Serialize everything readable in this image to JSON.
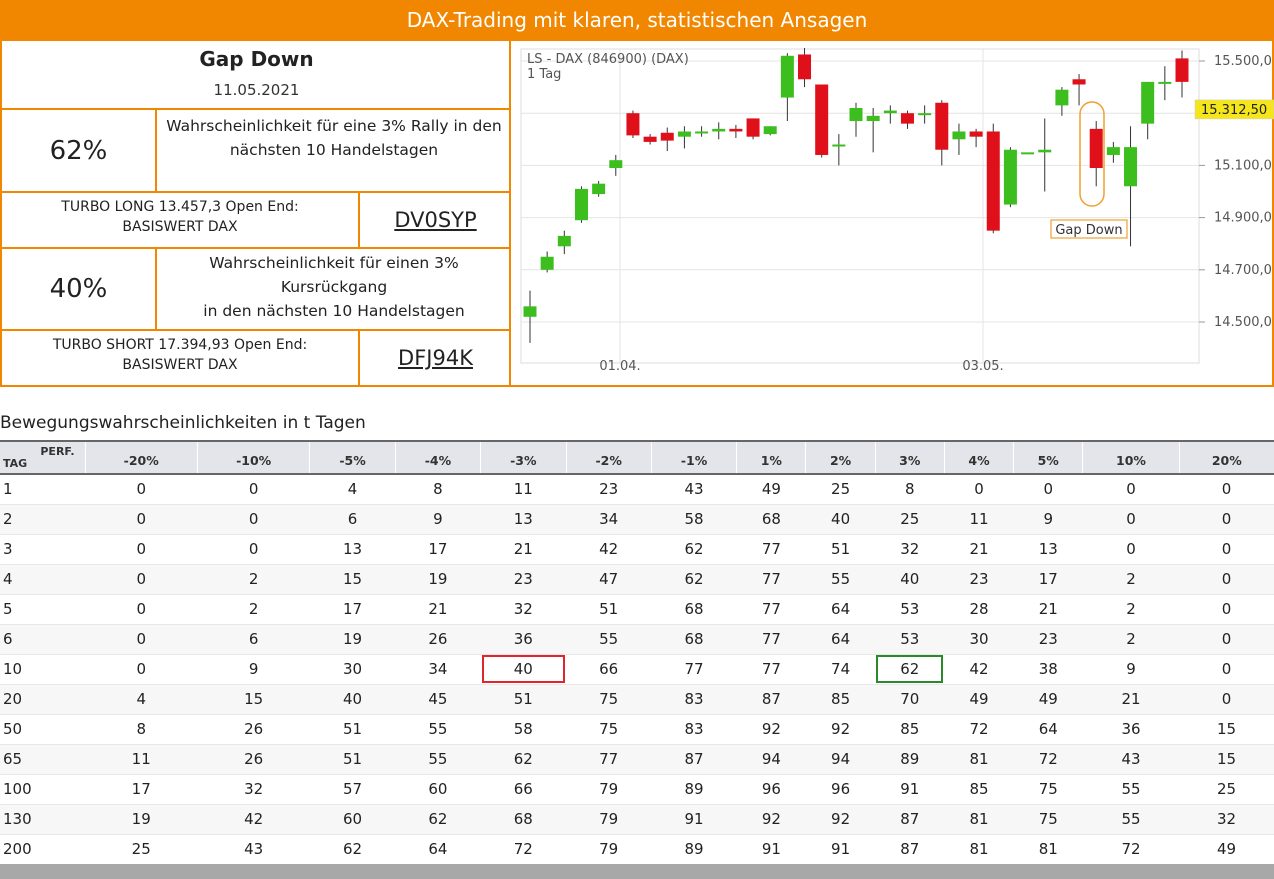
{
  "header": {
    "title": "DAX-Trading mit klaren, statistischen Ansagen"
  },
  "signal": {
    "title": "Gap Down",
    "date": "11.05.2021",
    "rally_pct": "62%",
    "rally_desc_1": "Wahrscheinlichkeit für eine 3% Rally in den",
    "rally_desc_2": "nächsten 10 Handelstagen",
    "long_line1": "TURBO LONG 13.457,3 Open End:",
    "long_line2": "BASISWERT DAX",
    "long_code": "DV0SYP",
    "drop_pct": "40%",
    "drop_desc_1": "Wahrscheinlichkeit für einen 3% Kursrückgang",
    "drop_desc_2": "in den nächsten 10 Handelstagen",
    "short_line1": "TURBO SHORT 17.394,93 Open End:",
    "short_line2": "BASISWERT DAX",
    "short_code": "DFJ94K"
  },
  "chart_data": {
    "type": "candlestick",
    "title": "LS - DAX (846900) (DAX)",
    "subtitle": "1 Tag",
    "y_ticks": [
      "15.500,0",
      "15.100,0",
      "14.900,0",
      "14.700,0",
      "14.500,0"
    ],
    "current_price_label": "15.312,50",
    "current_price": 15312.5,
    "x_ticks": [
      "01.04.",
      "03.05."
    ],
    "annotation": "Gap Down",
    "ylim": [
      14410,
      15560
    ],
    "grid": true,
    "up_color": "#3cbf1e",
    "down_color": "#e0101a",
    "candles": [
      {
        "o": 14520,
        "h": 14620,
        "l": 14420,
        "c": 14560
      },
      {
        "o": 14700,
        "h": 14770,
        "l": 14690,
        "c": 14750
      },
      {
        "o": 14790,
        "h": 14850,
        "l": 14760,
        "c": 14830
      },
      {
        "o": 14890,
        "h": 15020,
        "l": 14880,
        "c": 15010
      },
      {
        "o": 14990,
        "h": 15040,
        "l": 14980,
        "c": 15030
      },
      {
        "o": 15090,
        "h": 15140,
        "l": 15060,
        "c": 15120
      },
      {
        "o": 15300,
        "h": 15310,
        "l": 15205,
        "c": 15215
      },
      {
        "o": 15210,
        "h": 15220,
        "l": 15180,
        "c": 15190
      },
      {
        "o": 15225,
        "h": 15245,
        "l": 15155,
        "c": 15195
      },
      {
        "o": 15210,
        "h": 15250,
        "l": 15165,
        "c": 15230
      },
      {
        "o": 15230,
        "h": 15250,
        "l": 15210,
        "c": 15230
      },
      {
        "o": 15230,
        "h": 15265,
        "l": 15200,
        "c": 15240
      },
      {
        "o": 15240,
        "h": 15255,
        "l": 15205,
        "c": 15230
      },
      {
        "o": 15280,
        "h": 15280,
        "l": 15200,
        "c": 15210
      },
      {
        "o": 15220,
        "h": 15250,
        "l": 15215,
        "c": 15250
      },
      {
        "o": 15360,
        "h": 15530,
        "l": 15270,
        "c": 15520
      },
      {
        "o": 15525,
        "h": 15550,
        "l": 15400,
        "c": 15430
      },
      {
        "o": 15410,
        "h": 15410,
        "l": 15130,
        "c": 15140
      },
      {
        "o": 15180,
        "h": 15220,
        "l": 15100,
        "c": 15180
      },
      {
        "o": 15270,
        "h": 15340,
        "l": 15210,
        "c": 15320
      },
      {
        "o": 15270,
        "h": 15320,
        "l": 15150,
        "c": 15290
      },
      {
        "o": 15300,
        "h": 15330,
        "l": 15260,
        "c": 15310
      },
      {
        "o": 15300,
        "h": 15310,
        "l": 15240,
        "c": 15260
      },
      {
        "o": 15300,
        "h": 15330,
        "l": 15260,
        "c": 15300
      },
      {
        "o": 15340,
        "h": 15350,
        "l": 15100,
        "c": 15160
      },
      {
        "o": 15200,
        "h": 15260,
        "l": 15140,
        "c": 15230
      },
      {
        "o": 15230,
        "h": 15240,
        "l": 15170,
        "c": 15210
      },
      {
        "o": 15230,
        "h": 15260,
        "l": 14840,
        "c": 14850
      },
      {
        "o": 14950,
        "h": 15170,
        "l": 14940,
        "c": 15160
      },
      {
        "o": 15150,
        "h": 15150,
        "l": 15150,
        "c": 15150
      },
      {
        "o": 15150,
        "h": 15280,
        "l": 15000,
        "c": 15160
      },
      {
        "o": 15330,
        "h": 15400,
        "l": 15290,
        "c": 15390
      },
      {
        "o": 15430,
        "h": 15450,
        "l": 15330,
        "c": 15410
      },
      {
        "o": 15240,
        "h": 15270,
        "l": 15020,
        "c": 15090
      },
      {
        "o": 15140,
        "h": 15190,
        "l": 15110,
        "c": 15170
      },
      {
        "o": 15020,
        "h": 15250,
        "l": 14790,
        "c": 15170
      },
      {
        "o": 15260,
        "h": 15420,
        "l": 15200,
        "c": 15420
      },
      {
        "o": 15420,
        "h": 15480,
        "l": 15350,
        "c": 15420
      },
      {
        "o": 15510,
        "h": 15540,
        "l": 15360,
        "c": 15420
      }
    ]
  },
  "table": {
    "heading": "Bewegungswahrscheinlichkeiten in t Tagen",
    "perf_label": "PERF.",
    "tag_label": "TAG",
    "columns": [
      "-20%",
      "-10%",
      "-5%",
      "-4%",
      "-3%",
      "-2%",
      "-1%",
      "1%",
      "2%",
      "3%",
      "4%",
      "5%",
      "10%",
      "20%"
    ],
    "rows": [
      [
        "1",
        "0",
        "0",
        "4",
        "8",
        "11",
        "23",
        "43",
        "49",
        "25",
        "8",
        "0",
        "0",
        "0",
        "0"
      ],
      [
        "2",
        "0",
        "0",
        "6",
        "9",
        "13",
        "34",
        "58",
        "68",
        "40",
        "25",
        "11",
        "9",
        "0",
        "0"
      ],
      [
        "3",
        "0",
        "0",
        "13",
        "17",
        "21",
        "42",
        "62",
        "77",
        "51",
        "32",
        "21",
        "13",
        "0",
        "0"
      ],
      [
        "4",
        "0",
        "2",
        "15",
        "19",
        "23",
        "47",
        "62",
        "77",
        "55",
        "40",
        "23",
        "17",
        "2",
        "0"
      ],
      [
        "5",
        "0",
        "2",
        "17",
        "21",
        "32",
        "51",
        "68",
        "77",
        "64",
        "53",
        "28",
        "21",
        "2",
        "0"
      ],
      [
        "6",
        "0",
        "6",
        "19",
        "26",
        "36",
        "55",
        "68",
        "77",
        "64",
        "53",
        "30",
        "23",
        "2",
        "0"
      ],
      [
        "10",
        "0",
        "9",
        "30",
        "34",
        "40",
        "66",
        "77",
        "77",
        "74",
        "62",
        "42",
        "38",
        "9",
        "0"
      ],
      [
        "20",
        "4",
        "15",
        "40",
        "45",
        "51",
        "75",
        "83",
        "87",
        "85",
        "70",
        "49",
        "49",
        "21",
        "0"
      ],
      [
        "50",
        "8",
        "26",
        "51",
        "55",
        "58",
        "75",
        "83",
        "92",
        "92",
        "85",
        "72",
        "64",
        "36",
        "15"
      ],
      [
        "65",
        "11",
        "26",
        "51",
        "55",
        "62",
        "77",
        "87",
        "94",
        "94",
        "89",
        "81",
        "72",
        "43",
        "15"
      ],
      [
        "100",
        "17",
        "32",
        "57",
        "60",
        "66",
        "79",
        "89",
        "96",
        "96",
        "91",
        "85",
        "75",
        "55",
        "25"
      ],
      [
        "130",
        "19",
        "42",
        "60",
        "62",
        "68",
        "79",
        "91",
        "92",
        "92",
        "87",
        "81",
        "75",
        "55",
        "32"
      ],
      [
        "200",
        "25",
        "43",
        "62",
        "64",
        "72",
        "79",
        "89",
        "91",
        "91",
        "87",
        "81",
        "81",
        "72",
        "49"
      ]
    ]
  }
}
